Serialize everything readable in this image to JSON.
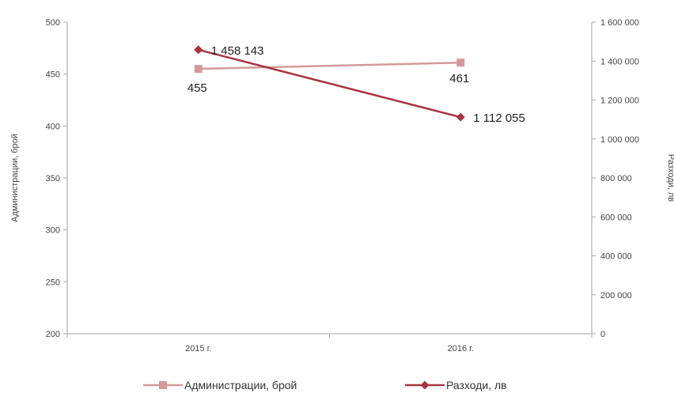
{
  "chart_data": {
    "type": "line",
    "categories": [
      "2015 г.",
      "2016 г."
    ],
    "series": [
      {
        "name": "Администрации, брой",
        "axis": "left",
        "values": [
          455,
          461
        ],
        "labels": [
          "455",
          "461"
        ],
        "color": "#d49a9a",
        "marker": "square"
      },
      {
        "name": "Разходи, лв",
        "axis": "right",
        "values": [
          1458143,
          1112055
        ],
        "labels": [
          "1 458 143",
          "1 112 055"
        ],
        "color": "#a8343f",
        "marker": "diamond"
      }
    ],
    "y_left": {
      "label": "Администрации, брой",
      "range": [
        200,
        500
      ],
      "ticks": [
        200,
        250,
        300,
        350,
        400,
        450,
        500
      ],
      "tick_labels": [
        "200",
        "250",
        "300",
        "350",
        "400",
        "450",
        "500"
      ]
    },
    "y_right": {
      "label": "Разходи, лв",
      "range": [
        0,
        1600000
      ],
      "ticks": [
        0,
        200000,
        400000,
        600000,
        800000,
        1000000,
        1200000,
        1400000,
        1600000
      ],
      "tick_labels": [
        "0",
        "200 000",
        "400 000",
        "600 000",
        "800 000",
        "1 000 000",
        "1 200 000",
        "1 400 000",
        "1 600 000"
      ]
    },
    "grid": false,
    "legend": "bottom"
  }
}
